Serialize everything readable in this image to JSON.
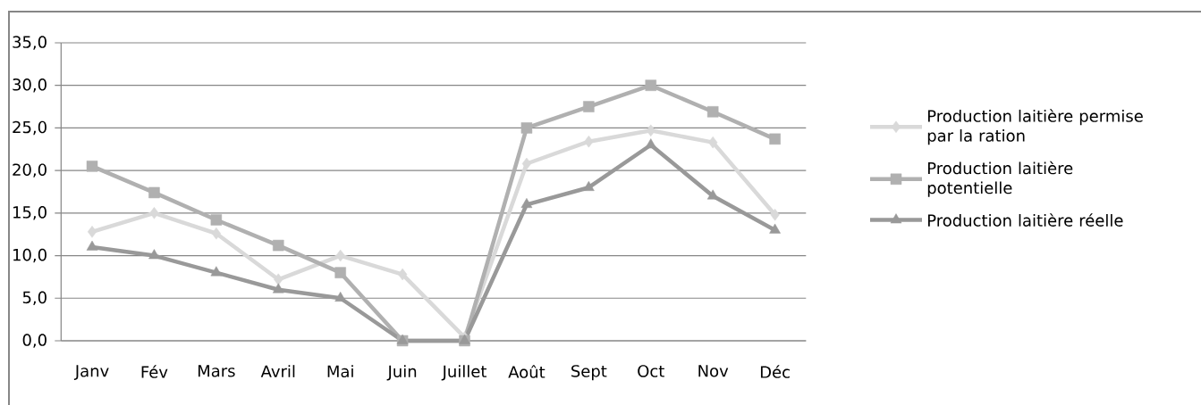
{
  "chart_data": {
    "type": "line",
    "categories": [
      "Janv",
      "Fév",
      "Mars",
      "Avril",
      "Mai",
      "Juin",
      "Juillet",
      "Août",
      "Sept",
      "Oct",
      "Nov",
      "Déc"
    ],
    "series": [
      {
        "name": "Production laitière permise par la ration",
        "color": "#d9d9d9",
        "marker": "diamond",
        "values": [
          12.8,
          15.0,
          12.6,
          7.2,
          10.0,
          7.8,
          0.4,
          20.8,
          23.4,
          24.7,
          23.3,
          14.8
        ]
      },
      {
        "name": "Production laitière potentielle",
        "color": "#b0b0b0",
        "marker": "square",
        "values": [
          20.5,
          17.4,
          14.2,
          11.2,
          8.0,
          0.0,
          0.0,
          25.0,
          27.5,
          30.0,
          26.9,
          23.7
        ]
      },
      {
        "name": "Production laitière réelle",
        "color": "#999999",
        "marker": "triangle",
        "values": [
          11.0,
          10.0,
          8.0,
          6.0,
          5.0,
          0.0,
          0.0,
          16.0,
          18.0,
          23.0,
          17.0,
          13.0
        ]
      }
    ],
    "ylim": [
      0,
      35
    ],
    "yticks": [
      {
        "value": 0,
        "label": "0,0"
      },
      {
        "value": 5,
        "label": "5,0"
      },
      {
        "value": 10,
        "label": "10,0"
      },
      {
        "value": 15,
        "label": "15,0"
      },
      {
        "value": 20,
        "label": "20,0"
      },
      {
        "value": 25,
        "label": "25,0"
      },
      {
        "value": 30,
        "label": "30,0"
      },
      {
        "value": 35,
        "label": "35,0"
      }
    ],
    "grid": "y",
    "legend": "right",
    "line_style": "solid"
  }
}
